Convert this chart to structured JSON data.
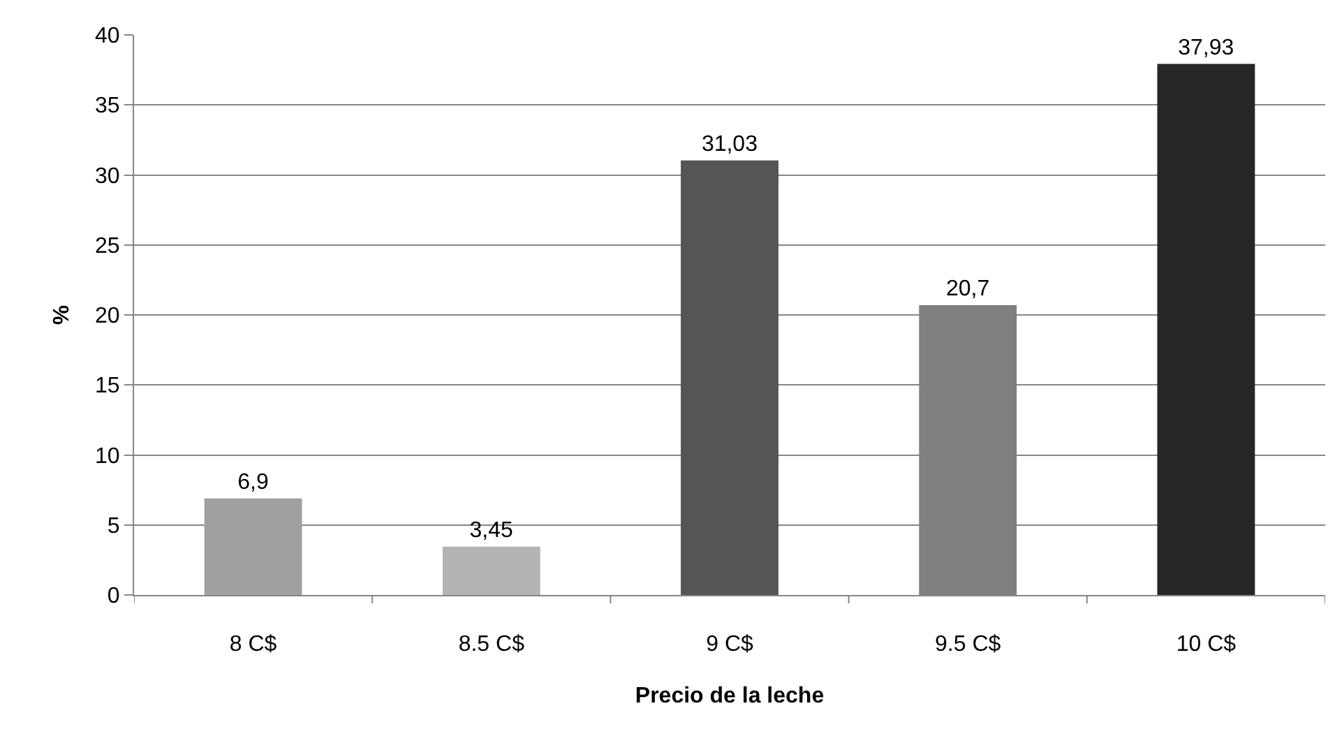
{
  "chart_data": {
    "type": "bar",
    "xlabel": "Precio de la leche",
    "ylabel": "%",
    "categories": [
      "8 C$",
      "8.5 C$",
      "9 C$",
      "9.5 C$",
      "10 C$"
    ],
    "values": [
      6.9,
      3.45,
      31.03,
      20.7,
      37.93
    ],
    "value_labels": [
      "6,9",
      "3,45",
      "31,03",
      "20,7",
      "37,93"
    ],
    "colors": [
      "#a0a0a0",
      "#b4b4b4",
      "#555555",
      "#808080",
      "#262626"
    ],
    "ylim": [
      0,
      40
    ],
    "yticks": [
      0,
      5,
      10,
      15,
      20,
      25,
      30,
      35,
      40
    ],
    "grid": "y"
  }
}
